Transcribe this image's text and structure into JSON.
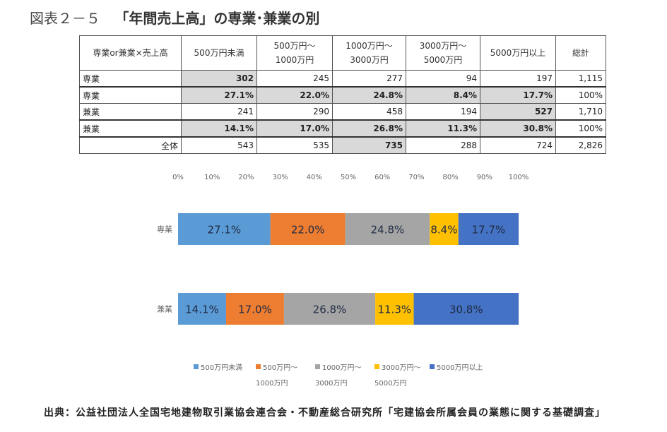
{
  "figure": {
    "number": "図表２－５",
    "title": "「年間売上高」の専業･兼業の別"
  },
  "table": {
    "corner": "専業or兼業×売上高",
    "headers": [
      [
        "500万円未満"
      ],
      [
        "500万円～",
        "1000万円"
      ],
      [
        "1000万円～",
        "3000万円"
      ],
      [
        "3000万円～",
        "5000万円"
      ],
      [
        "5000万円以上"
      ],
      [
        "総計"
      ]
    ],
    "rows": [
      {
        "label": "専業",
        "cells": [
          "302",
          "245",
          "277",
          "94",
          "197",
          "1,115"
        ]
      },
      {
        "label": "専業",
        "cells": [
          "27.1%",
          "22.0%",
          "24.8%",
          "8.4%",
          "17.7%",
          "100%"
        ]
      },
      {
        "label": "兼業",
        "cells": [
          "241",
          "290",
          "458",
          "194",
          "527",
          "1,710"
        ]
      },
      {
        "label": "兼業",
        "cells": [
          "14.1%",
          "17.0%",
          "26.8%",
          "11.3%",
          "30.8%",
          "100%"
        ]
      },
      {
        "label": "全体",
        "cells": [
          "543",
          "535",
          "735",
          "288",
          "724",
          "2,826"
        ]
      }
    ]
  },
  "chart_data": {
    "type": "bar",
    "orientation": "horizontal",
    "stacked": true,
    "percent_stacked": true,
    "categories": [
      "専業",
      "兼業"
    ],
    "series": [
      {
        "name": "500万円未満",
        "name_lines": [
          "500万円未満"
        ],
        "values": [
          27.1,
          14.1
        ],
        "labels": [
          "27.1%",
          "14.1%"
        ],
        "color": "#5b9bd5"
      },
      {
        "name": "500万円～1000万円",
        "name_lines": [
          "500万円～",
          "1000万円"
        ],
        "values": [
          22.0,
          17.0
        ],
        "labels": [
          "22.0%",
          "17.0%"
        ],
        "color": "#ed7d31"
      },
      {
        "name": "1000万円～3000万円",
        "name_lines": [
          "1000万円～",
          "3000万円"
        ],
        "values": [
          24.8,
          26.8
        ],
        "labels": [
          "24.8%",
          "26.8%"
        ],
        "color": "#a5a5a5"
      },
      {
        "name": "3000万円～5000万円",
        "name_lines": [
          "3000万円～",
          "5000万円"
        ],
        "values": [
          8.4,
          11.3
        ],
        "labels": [
          "8.4%",
          "11.3%"
        ],
        "color": "#ffc000"
      },
      {
        "name": "5000万円以上",
        "name_lines": [
          "5000万円以上"
        ],
        "values": [
          17.7,
          30.8
        ],
        "labels": [
          "17.7%",
          "30.8%"
        ],
        "color": "#4472c4"
      }
    ],
    "xlim": [
      0,
      100
    ],
    "ticks": [
      "0%",
      "10%",
      "20%",
      "30%",
      "40%",
      "50%",
      "60%",
      "70%",
      "80%",
      "90%",
      "100%"
    ],
    "legend": "bottom",
    "grid": false
  },
  "source": "出典：公益社団法人全国宅地建物取引業協会連合会・不動産総合研究所「宅建協会所属会員の業態に関する基礎調査」"
}
